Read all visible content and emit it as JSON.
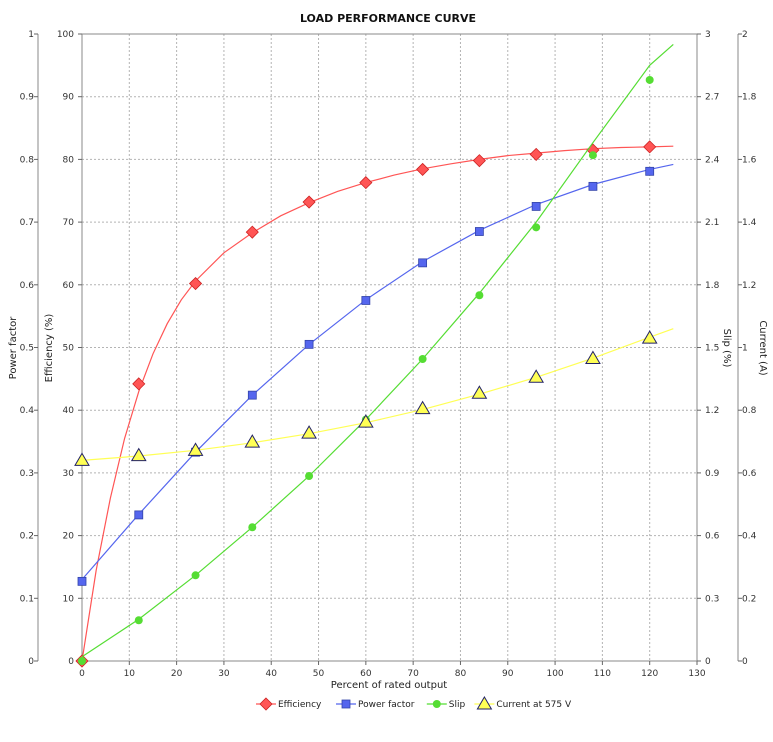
{
  "chart_data": {
    "type": "scatter",
    "title": "LOAD PERFORMANCE CURVE",
    "xlabel": "Percent of rated output",
    "xlim": [
      0,
      130
    ],
    "x_ticks": [
      "0",
      "10",
      "20",
      "30",
      "40",
      "50",
      "60",
      "70",
      "80",
      "90",
      "100",
      "110",
      "120",
      "130"
    ],
    "grid": true,
    "legend_position": "bottom-center",
    "axes": {
      "power_factor": {
        "label": "Power factor",
        "side": "left-outer",
        "lim": [
          0,
          1
        ],
        "ticks": [
          "0",
          "0.1",
          "0.2",
          "0.3",
          "0.4",
          "0.5",
          "0.6",
          "0.7",
          "0.8",
          "0.9",
          "1"
        ]
      },
      "efficiency": {
        "label": "Efficiency (%)",
        "side": "left-inner",
        "lim": [
          0,
          100
        ],
        "ticks": [
          "0",
          "10",
          "20",
          "30",
          "40",
          "50",
          "60",
          "70",
          "80",
          "90",
          "100"
        ]
      },
      "slip": {
        "label": "Slip (%)",
        "side": "right-inner",
        "lim": [
          0,
          3
        ],
        "ticks": [
          "0",
          "0.3",
          "0.6",
          "0.9",
          "1.2",
          "1.5",
          "1.8",
          "2.1",
          "2.4",
          "2.7",
          "3"
        ]
      },
      "current": {
        "label": "Current (A)",
        "side": "right-outer",
        "lim": [
          0,
          2
        ],
        "ticks": [
          "0",
          "0.2",
          "0.4",
          "0.6",
          "0.8",
          "1",
          "1.2",
          "1.4",
          "1.6",
          "1.8",
          "2"
        ]
      }
    },
    "series": [
      {
        "name": "Efficiency",
        "axis": "efficiency",
        "color": "#ff5555",
        "marker": "diamond",
        "points": [
          [
            0,
            0
          ],
          [
            12,
            44.2
          ],
          [
            24,
            60.2
          ],
          [
            36,
            68.4
          ],
          [
            48,
            73.2
          ],
          [
            60,
            76.3
          ],
          [
            72,
            78.4
          ],
          [
            84,
            79.8
          ],
          [
            96,
            80.8
          ],
          [
            108,
            81.5
          ],
          [
            120,
            82.0
          ]
        ],
        "curve": [
          [
            0,
            0
          ],
          [
            3,
            14.5
          ],
          [
            6,
            26
          ],
          [
            9,
            35.5
          ],
          [
            12,
            43
          ],
          [
            15,
            49
          ],
          [
            18,
            53.8
          ],
          [
            21,
            57.6
          ],
          [
            24,
            60.6
          ],
          [
            30,
            65.1
          ],
          [
            36,
            68.3
          ],
          [
            42,
            71
          ],
          [
            48,
            73.1
          ],
          [
            54,
            74.9
          ],
          [
            60,
            76.3
          ],
          [
            66,
            77.5
          ],
          [
            72,
            78.5
          ],
          [
            78,
            79.3
          ],
          [
            84,
            80
          ],
          [
            90,
            80.6
          ],
          [
            96,
            81
          ],
          [
            102,
            81.4
          ],
          [
            108,
            81.7
          ],
          [
            114,
            81.9
          ],
          [
            120,
            82.0
          ],
          [
            125,
            82.1
          ]
        ]
      },
      {
        "name": "Power factor",
        "axis": "power_factor",
        "color": "#5566ee",
        "marker": "square",
        "points": [
          [
            0,
            0.127
          ],
          [
            12,
            0.233
          ],
          [
            24,
            0.333
          ],
          [
            36,
            0.424
          ],
          [
            48,
            0.505
          ],
          [
            60,
            0.575
          ],
          [
            72,
            0.635
          ],
          [
            84,
            0.685
          ],
          [
            96,
            0.725
          ],
          [
            108,
            0.757
          ],
          [
            120,
            0.781
          ]
        ],
        "curve": [
          [
            0,
            0.13
          ],
          [
            12,
            0.234
          ],
          [
            24,
            0.333
          ],
          [
            36,
            0.424
          ],
          [
            48,
            0.505
          ],
          [
            60,
            0.576
          ],
          [
            72,
            0.637
          ],
          [
            84,
            0.687
          ],
          [
            96,
            0.728
          ],
          [
            108,
            0.76
          ],
          [
            120,
            0.784
          ],
          [
            125,
            0.792
          ]
        ]
      },
      {
        "name": "Slip",
        "axis": "slip",
        "color": "#55dd33",
        "marker": "circle",
        "points": [
          [
            0,
            0
          ],
          [
            12,
            0.195
          ],
          [
            24,
            0.41
          ],
          [
            36,
            0.64
          ],
          [
            48,
            0.885
          ],
          [
            60,
            1.155
          ],
          [
            72,
            1.445
          ],
          [
            84,
            1.75
          ],
          [
            96,
            2.075
          ],
          [
            108,
            2.42
          ],
          [
            120,
            2.78
          ]
        ],
        "curve": [
          [
            0,
            0.02
          ],
          [
            12,
            0.2
          ],
          [
            24,
            0.41
          ],
          [
            36,
            0.64
          ],
          [
            48,
            0.885
          ],
          [
            60,
            1.155
          ],
          [
            72,
            1.445
          ],
          [
            84,
            1.76
          ],
          [
            96,
            2.1
          ],
          [
            108,
            2.48
          ],
          [
            120,
            2.85
          ],
          [
            125,
            2.95
          ]
        ]
      },
      {
        "name": "Current at 575 V",
        "axis": "current",
        "color": "#ffff55",
        "marker": "triangle",
        "points": [
          [
            0,
            0.64
          ],
          [
            12,
            0.655
          ],
          [
            24,
            0.672
          ],
          [
            36,
            0.698
          ],
          [
            48,
            0.727
          ],
          [
            60,
            0.762
          ],
          [
            72,
            0.805
          ],
          [
            84,
            0.854
          ],
          [
            96,
            0.905
          ],
          [
            108,
            0.965
          ],
          [
            120,
            1.03
          ]
        ],
        "curve": [
          [
            0,
            0.64
          ],
          [
            12,
            0.654
          ],
          [
            24,
            0.672
          ],
          [
            36,
            0.696
          ],
          [
            48,
            0.725
          ],
          [
            60,
            0.76
          ],
          [
            72,
            0.802
          ],
          [
            84,
            0.851
          ],
          [
            96,
            0.905
          ],
          [
            108,
            0.966
          ],
          [
            120,
            1.033
          ],
          [
            125,
            1.06
          ]
        ]
      }
    ]
  }
}
